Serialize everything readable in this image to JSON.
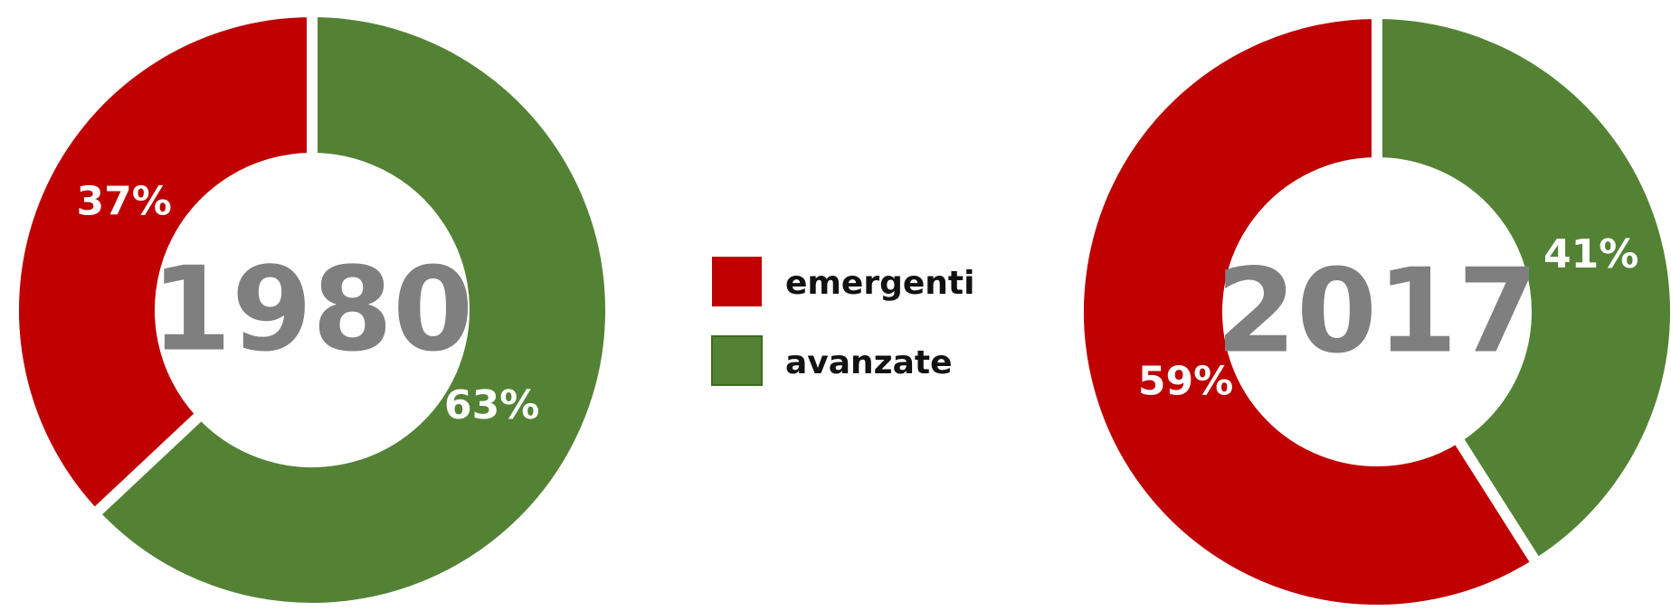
{
  "chart_data": [
    {
      "type": "pie",
      "variant": "donut",
      "center_label": "1980",
      "slices": [
        {
          "name": "emergenti",
          "value": 37,
          "label": "37%"
        },
        {
          "name": "avanzate",
          "value": 63,
          "label": "63%"
        }
      ]
    },
    {
      "type": "pie",
      "variant": "donut",
      "center_label": "2017",
      "slices": [
        {
          "name": "emergenti",
          "value": 59,
          "label": "59%"
        },
        {
          "name": "avanzate",
          "value": 41,
          "label": "41%"
        }
      ]
    }
  ],
  "legend": {
    "placement": "center",
    "items": [
      {
        "name": "emergenti",
        "label": "emergenti",
        "color": "#c00000"
      },
      {
        "name": "avanzate",
        "label": "avanzate",
        "color": "#548235"
      }
    ]
  },
  "colors": {
    "emergenti": "#c00000",
    "avanzate": "#548235",
    "center_text": "#7f7f7f",
    "slice_label": "#ffffff"
  }
}
